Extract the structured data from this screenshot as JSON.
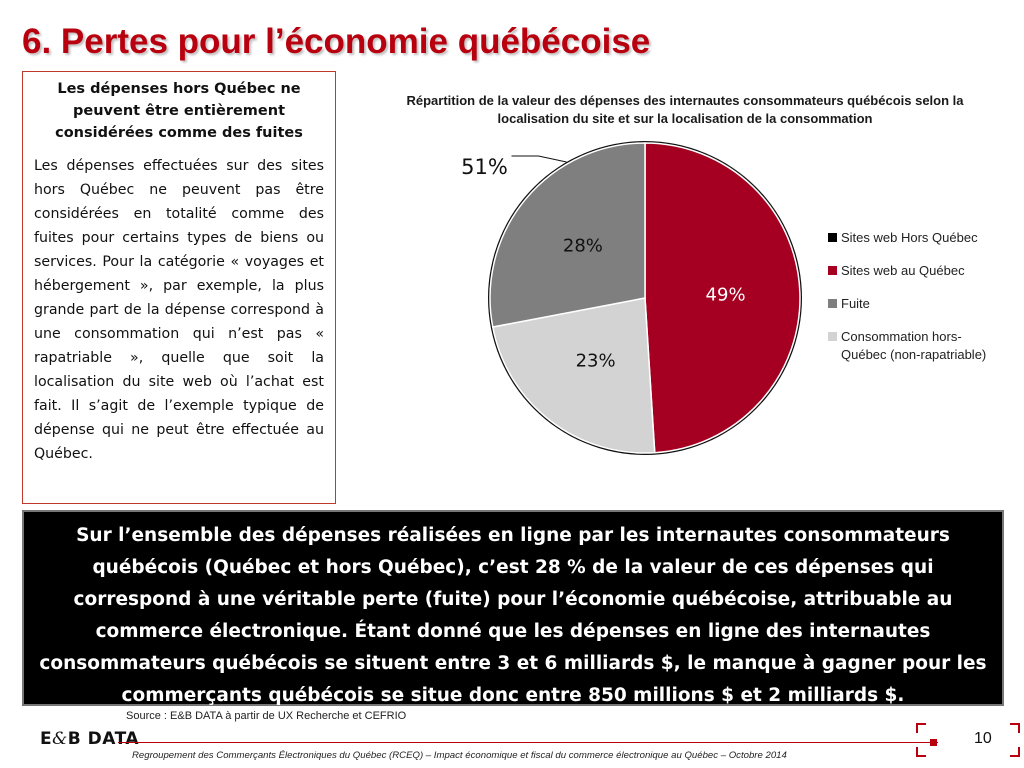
{
  "slide": {
    "title": "6. Pertes pour l’économie québécoise",
    "page_number": "10"
  },
  "textbox": {
    "heading": "Les dépenses hors Québec ne peuvent être entièrement considérées comme des fuites",
    "body": "Les dépenses effectuées sur des sites hors Québec ne peuvent pas être considérées en totalité comme des fuites pour certains types de biens ou services. Pour la catégorie « voyages et hébergement », par exemple, la plus grande part de la dépense correspond à une consommation qui n’est pas « rapatriable », quelle que soit la localisation du site web où l’achat est fait. Il s’agit de l’exemple typique de dépense qui ne peut être effectuée au Québec."
  },
  "callout": {
    "text": "Sur l’ensemble des dépenses réalisées en ligne par les internautes consommateurs québécois (Québec et hors Québec), c’est 28 % de la valeur de ces dépenses qui correspond à une véritable perte (fuite) pour l’économie québécoise, attribuable au commerce électronique. Étant donné que les dépenses en ligne des internautes consommateurs québécois se situent entre 3 et 6 milliards $, le manque à gagner pour les commerçants québécois se situe donc entre 850 millions $ et 2 milliards $."
  },
  "footer": {
    "source": "Source : E&B DATA à partir de UX Recherche et CEFRIO",
    "logo_left": "E",
    "logo_amp": "&",
    "logo_right": "B DATA",
    "note": "Regroupement des Commerçants Électroniques du Québec (RCEQ) – Impact économique et fiscal du commerce électronique au Québec – Octobre 2014"
  },
  "chart_data": {
    "type": "pie",
    "title": "Répartition de la valeur des dépenses des internautes consommateurs québécois selon la localisation du site et sur la localisation de la consommation",
    "slices": [
      {
        "name": "Sites web au Québec",
        "value": 49,
        "label": "49%",
        "color": "#a50021"
      },
      {
        "name": "Consommation hors-Québec (non-rapatriable)",
        "value": 23,
        "label": "23%",
        "color": "#d3d3d3"
      },
      {
        "name": "Fuite",
        "value": 28,
        "label": "28%",
        "color": "#7f7f7f"
      }
    ],
    "outer_annotation": {
      "label": "51%",
      "series": "Sites web Hors Québec"
    },
    "legend": [
      {
        "name": "Sites web Hors Québec",
        "color": "#000000"
      },
      {
        "name": "Sites web au Québec",
        "color": "#a50021"
      },
      {
        "name": "Fuite",
        "color": "#7f7f7f"
      },
      {
        "name": "Consommation hors-Québec (non-rapatriable)",
        "color": "#d3d3d3"
      }
    ],
    "legend_position": "right"
  }
}
